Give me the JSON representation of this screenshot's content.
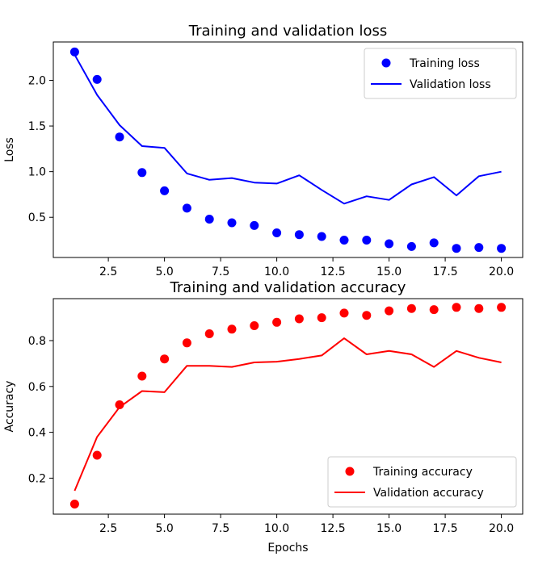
{
  "chart_data": [
    {
      "type": "line",
      "title": "Training and validation loss",
      "xlabel": "",
      "ylabel": "Loss",
      "xlim": [
        0.05,
        20.95
      ],
      "ylim": [
        0.06,
        2.42
      ],
      "xticks": [
        2.5,
        5.0,
        7.5,
        10.0,
        12.5,
        15.0,
        17.5,
        20.0
      ],
      "xtick_labels": [
        "2.5",
        "5.0",
        "7.5",
        "10.0",
        "12.5",
        "15.0",
        "17.5",
        "20.0"
      ],
      "yticks": [
        0.5,
        1.0,
        1.5,
        2.0
      ],
      "ytick_labels": [
        "0.5",
        "1.0",
        "1.5",
        "2.0"
      ],
      "grid": false,
      "legend_position": "top-right",
      "x": [
        1,
        2,
        3,
        4,
        5,
        6,
        7,
        8,
        9,
        10,
        11,
        12,
        13,
        14,
        15,
        16,
        17,
        18,
        19,
        20
      ],
      "series": [
        {
          "name": "Training loss",
          "style": "scatter",
          "color": "#0000ff",
          "values": [
            2.31,
            2.01,
            1.38,
            0.99,
            0.79,
            0.6,
            0.48,
            0.44,
            0.41,
            0.33,
            0.31,
            0.29,
            0.25,
            0.25,
            0.21,
            0.18,
            0.22,
            0.16,
            0.17,
            0.16
          ]
        },
        {
          "name": "Validation loss",
          "style": "line",
          "color": "#0000ff",
          "values": [
            2.28,
            1.84,
            1.51,
            1.28,
            1.26,
            0.98,
            0.91,
            0.93,
            0.88,
            0.87,
            0.96,
            0.8,
            0.65,
            0.73,
            0.69,
            0.86,
            0.94,
            0.74,
            0.95,
            1.0
          ]
        }
      ]
    },
    {
      "type": "line",
      "title": "Training and validation accuracy",
      "xlabel": "Epochs",
      "ylabel": "Accuracy",
      "xlim": [
        0.05,
        20.95
      ],
      "ylim": [
        0.043,
        0.983
      ],
      "xticks": [
        2.5,
        5.0,
        7.5,
        10.0,
        12.5,
        15.0,
        17.5,
        20.0
      ],
      "xtick_labels": [
        "2.5",
        "5.0",
        "7.5",
        "10.0",
        "12.5",
        "15.0",
        "17.5",
        "20.0"
      ],
      "yticks": [
        0.2,
        0.4,
        0.6,
        0.8
      ],
      "ytick_labels": [
        "0.2",
        "0.4",
        "0.6",
        "0.8"
      ],
      "grid": false,
      "legend_position": "bottom-right",
      "x": [
        1,
        2,
        3,
        4,
        5,
        6,
        7,
        8,
        9,
        10,
        11,
        12,
        13,
        14,
        15,
        16,
        17,
        18,
        19,
        20
      ],
      "series": [
        {
          "name": "Training accuracy",
          "style": "scatter",
          "color": "#ff0000",
          "values": [
            0.087,
            0.3,
            0.52,
            0.645,
            0.72,
            0.79,
            0.83,
            0.85,
            0.865,
            0.88,
            0.895,
            0.9,
            0.92,
            0.91,
            0.93,
            0.94,
            0.935,
            0.945,
            0.94,
            0.945
          ]
        },
        {
          "name": "Validation accuracy",
          "style": "line",
          "color": "#ff0000",
          "values": [
            0.145,
            0.38,
            0.51,
            0.58,
            0.575,
            0.69,
            0.69,
            0.685,
            0.705,
            0.708,
            0.72,
            0.735,
            0.81,
            0.74,
            0.755,
            0.74,
            0.685,
            0.755,
            0.725,
            0.705
          ]
        }
      ]
    }
  ]
}
